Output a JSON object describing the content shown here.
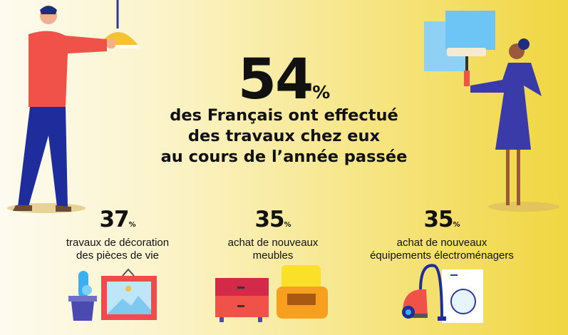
{
  "main": {
    "value": "54",
    "unit": "%",
    "text_lines": [
      "des Français ont effectué",
      "des travaux chez eux",
      "au cours de l’année passée"
    ]
  },
  "stats": [
    {
      "value": "37",
      "unit": "%",
      "lines": [
        "travaux de décoration",
        "des pièces de vie"
      ],
      "icon": "cactus-and-picture-frame-icon"
    },
    {
      "value": "35",
      "unit": "%",
      "lines": [
        "achat de nouveaux",
        "meubles"
      ],
      "icon": "dresser-and-armchair-icon"
    },
    {
      "value": "35",
      "unit": "%",
      "lines": [
        "achat de nouveaux",
        "équipements électroménagers"
      ],
      "icon": "vacuum-and-washing-machine-icon"
    }
  ],
  "colors": {
    "background_start": "#fdfbf0",
    "background_end": "#f0d640",
    "accent_red": "#f0524a",
    "accent_blue": "#2b3a9c"
  }
}
